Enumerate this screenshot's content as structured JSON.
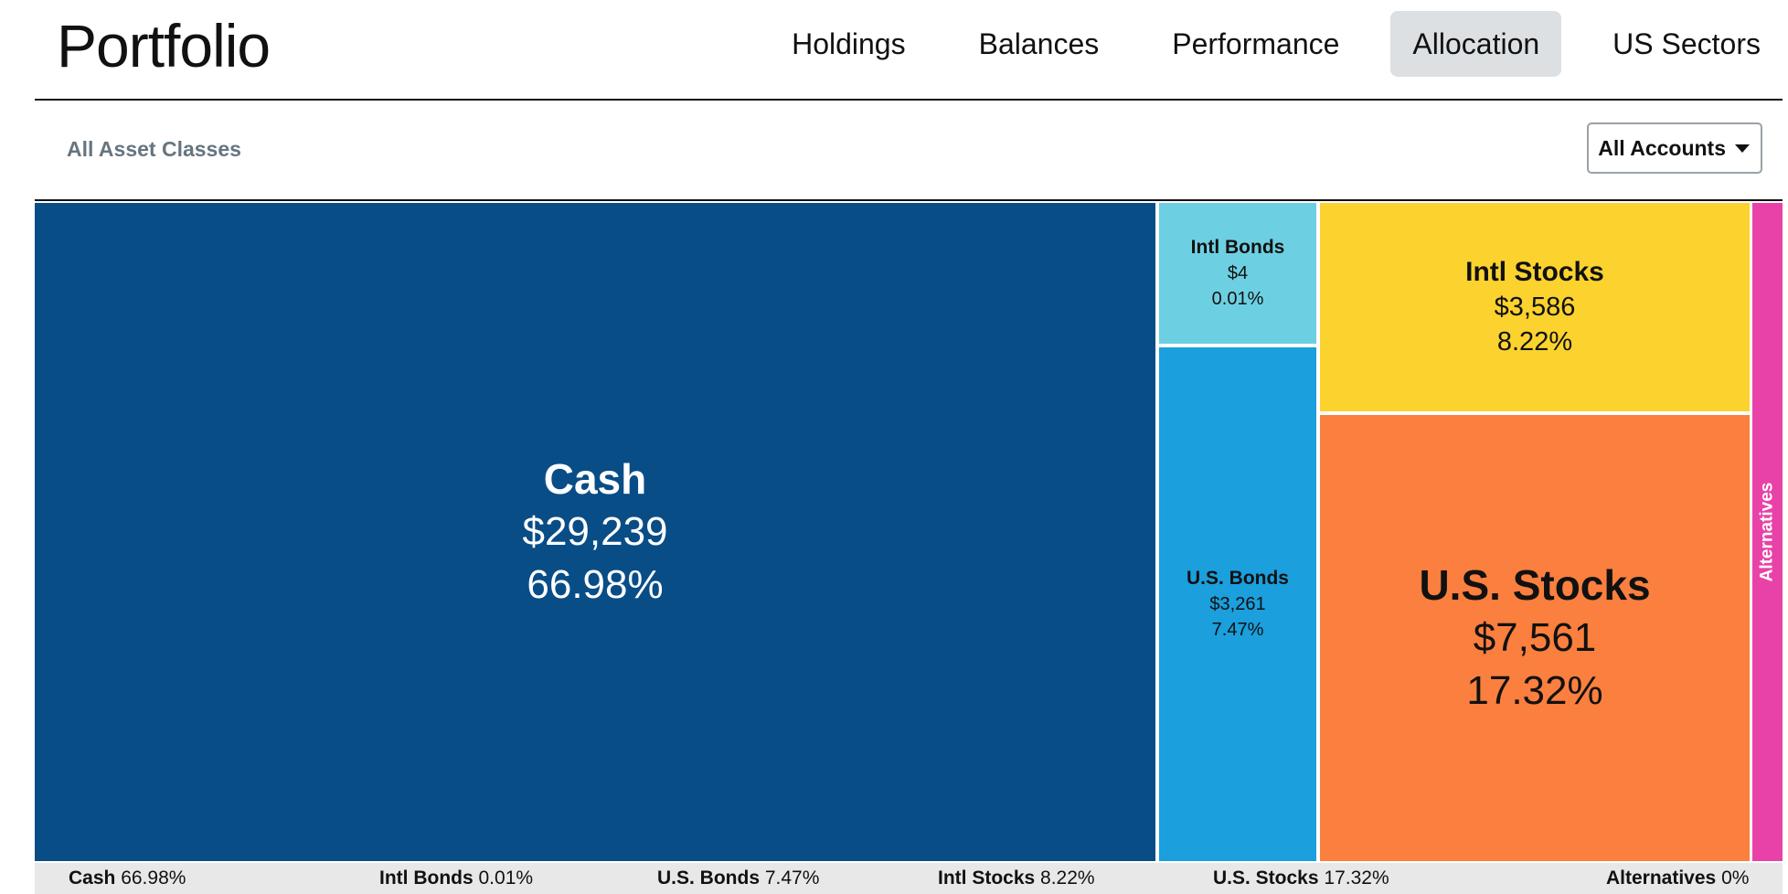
{
  "app": {
    "title": "Portfolio"
  },
  "nav": {
    "tabs": [
      {
        "label": "Holdings",
        "active": false
      },
      {
        "label": "Balances",
        "active": false
      },
      {
        "label": "Performance",
        "active": false
      },
      {
        "label": "Allocation",
        "active": true
      },
      {
        "label": "US Sectors",
        "active": false
      }
    ]
  },
  "filters": {
    "asset_classes_label": "All Asset Classes",
    "accounts_selected": "All Accounts",
    "accounts_icon": "caret-down-icon"
  },
  "chart_data": {
    "type": "treemap",
    "items": [
      {
        "name": "Cash",
        "value": 29239,
        "value_label": "$29,239",
        "percent": 66.98,
        "percent_label": "66.98%",
        "color": "#094d87",
        "text_color": "#ffffff"
      },
      {
        "name": "Intl Bonds",
        "value": 4,
        "value_label": "$4",
        "percent": 0.01,
        "percent_label": "0.01%",
        "color": "#6dd0e2",
        "text_color": "#111111"
      },
      {
        "name": "U.S. Bonds",
        "value": 3261,
        "value_label": "$3,261",
        "percent": 7.47,
        "percent_label": "7.47%",
        "color": "#1b9fdd",
        "text_color": "#111111"
      },
      {
        "name": "Intl Stocks",
        "value": 3586,
        "value_label": "$3,586",
        "percent": 8.22,
        "percent_label": "8.22%",
        "color": "#fbd22e",
        "text_color": "#111111"
      },
      {
        "name": "U.S. Stocks",
        "value": 7561,
        "value_label": "$7,561",
        "percent": 17.32,
        "percent_label": "17.32%",
        "color": "#fb7f3e",
        "text_color": "#111111"
      },
      {
        "name": "Alternatives",
        "value": 0,
        "percent": 0,
        "percent_label": "0%",
        "color": "#e842a8",
        "text_color": "#ffffff"
      }
    ]
  },
  "legend": {
    "items": [
      {
        "name": "Cash",
        "percent": "66.98%"
      },
      {
        "name": "Intl Bonds",
        "percent": "0.01%"
      },
      {
        "name": "U.S. Bonds",
        "percent": "7.47%"
      },
      {
        "name": "Intl Stocks",
        "percent": "8.22%"
      },
      {
        "name": "U.S. Stocks",
        "percent": "17.32%"
      },
      {
        "name": "Alternatives",
        "percent": "0%"
      }
    ]
  }
}
